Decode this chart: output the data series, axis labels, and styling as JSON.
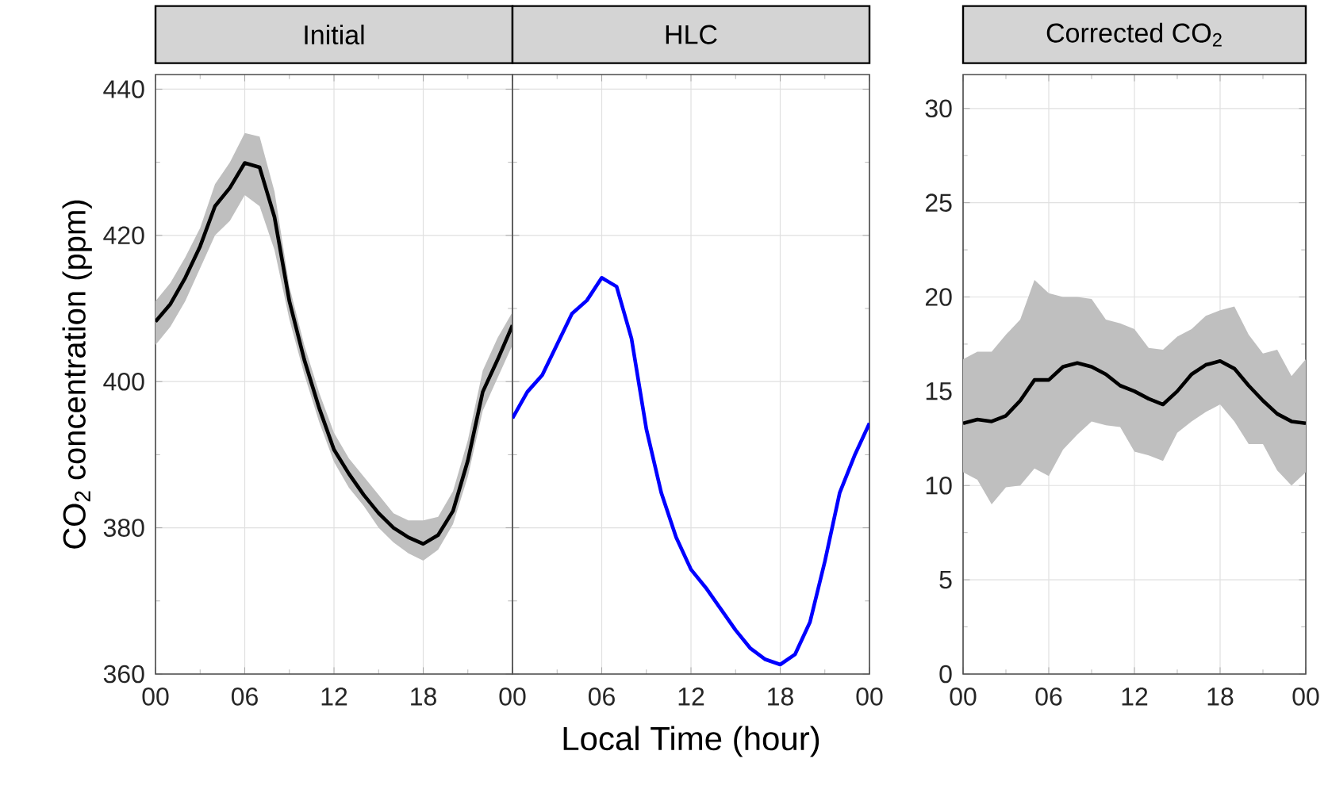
{
  "chart_data": [
    {
      "type": "line",
      "title": "Initial",
      "ylabel": "CO$_{2}$ concentration (ppm)",
      "x": [
        0,
        1,
        2,
        3,
        4,
        5,
        6,
        7,
        8,
        9,
        10,
        11,
        12,
        13,
        14,
        15,
        16,
        17,
        18,
        19,
        20,
        21,
        22,
        23,
        24
      ],
      "series": [
        {
          "color": "#000000",
          "values": [
            408.2,
            410.6,
            414.2,
            418.5,
            424,
            426.5,
            429.9,
            429.3,
            422.5,
            411,
            403,
            396.4,
            390.7,
            387.4,
            384.5,
            382,
            380,
            378.7,
            377.8,
            379,
            382.3,
            389.2,
            398.6,
            403,
            407.7
          ],
          "lower": [
            405,
            407.5,
            411,
            415.5,
            420,
            422,
            425.5,
            424,
            418,
            408.5,
            401,
            394.5,
            389,
            385.5,
            383,
            380,
            378,
            376.5,
            375.5,
            377,
            380.5,
            387,
            396,
            400.5,
            405
          ],
          "upper": [
            411,
            413.5,
            417,
            421,
            427,
            430,
            434,
            433.5,
            426,
            413,
            405,
            398.5,
            393,
            389.5,
            387,
            384.5,
            382,
            381,
            381,
            381.5,
            385,
            392,
            401.5,
            406,
            409.5
          ]
        }
      ],
      "xlim": [
        0,
        24
      ],
      "xticks": [
        {
          "value": 0,
          "label": "00"
        },
        {
          "value": 6,
          "label": "06"
        },
        {
          "value": 12,
          "label": "12"
        },
        {
          "value": 18,
          "label": "18"
        },
        {
          "value": 24,
          "label": null
        }
      ],
      "ylim": [
        360,
        442
      ],
      "yticks": [
        360,
        380,
        400,
        420,
        440
      ],
      "grid": true,
      "marker": "none",
      "line_style": "solid"
    },
    {
      "type": "line",
      "title": "HLC",
      "xlabel": "Local Time (hour)",
      "x": [
        0,
        1,
        2,
        3,
        4,
        5,
        6,
        7,
        8,
        9,
        10,
        11,
        12,
        13,
        14,
        15,
        16,
        17,
        18,
        19,
        20,
        21,
        22,
        23,
        24
      ],
      "series": [
        {
          "color": "#0000ff",
          "values": [
            395,
            398.6,
            400.9,
            405.1,
            409.3,
            411.1,
            414.2,
            413,
            405.9,
            393.5,
            384.8,
            378.7,
            374.3,
            371.8,
            368.9,
            366,
            363.5,
            362,
            361.3,
            362.7,
            367.1,
            375.4,
            384.8,
            389.9,
            394.3
          ]
        }
      ],
      "xlim": [
        0,
        24
      ],
      "xticks": [
        {
          "value": 0,
          "label": "00"
        },
        {
          "value": 6,
          "label": "06"
        },
        {
          "value": 12,
          "label": "12"
        },
        {
          "value": 18,
          "label": "18"
        },
        {
          "value": 24,
          "label": "00"
        }
      ],
      "ylim": [
        360,
        442
      ],
      "yticks": [
        360,
        380,
        400,
        420,
        440
      ],
      "tick_labels": "x",
      "grid": true,
      "marker": "none",
      "line_style": "solid"
    },
    {
      "type": "line",
      "title": "Corrected CO$_{2}$",
      "x": [
        0,
        1,
        2,
        3,
        4,
        5,
        6,
        7,
        8,
        9,
        10,
        11,
        12,
        13,
        14,
        15,
        16,
        17,
        18,
        19,
        20,
        21,
        22,
        23,
        24
      ],
      "series": [
        {
          "color": "#000000",
          "values": [
            13.3,
            13.5,
            13.4,
            13.7,
            14.5,
            15.6,
            15.6,
            16.3,
            16.5,
            16.3,
            15.9,
            15.3,
            15.0,
            14.6,
            14.3,
            15.0,
            15.9,
            16.4,
            16.6,
            16.2,
            15.3,
            14.5,
            13.8,
            13.4,
            13.3
          ],
          "lower": [
            10.7,
            10.3,
            9.0,
            9.9,
            10.0,
            10.9,
            10.5,
            11.9,
            12.7,
            13.4,
            13.2,
            13.1,
            11.8,
            11.6,
            11.3,
            12.8,
            13.4,
            13.9,
            14.3,
            13.4,
            12.2,
            12.2,
            10.8,
            10.0,
            10.7
          ],
          "upper": [
            16.7,
            17.1,
            17.1,
            18.0,
            18.8,
            20.9,
            20.2,
            20.0,
            20.0,
            19.9,
            18.8,
            18.6,
            18.3,
            17.3,
            17.2,
            17.9,
            18.3,
            19.0,
            19.3,
            19.5,
            18.0,
            17.0,
            17.2,
            15.8,
            16.7
          ]
        }
      ],
      "xlim": [
        0,
        24
      ],
      "xticks": [
        {
          "value": 0,
          "label": "00"
        },
        {
          "value": 6,
          "label": "06"
        },
        {
          "value": 12,
          "label": "12"
        },
        {
          "value": 18,
          "label": "18"
        },
        {
          "value": 24,
          "label": "00"
        }
      ],
      "ylim": [
        0,
        31.8
      ],
      "yticks": [
        0,
        5,
        10,
        15,
        20,
        25,
        30
      ],
      "grid": true,
      "marker": "none",
      "line_style": "solid"
    }
  ]
}
